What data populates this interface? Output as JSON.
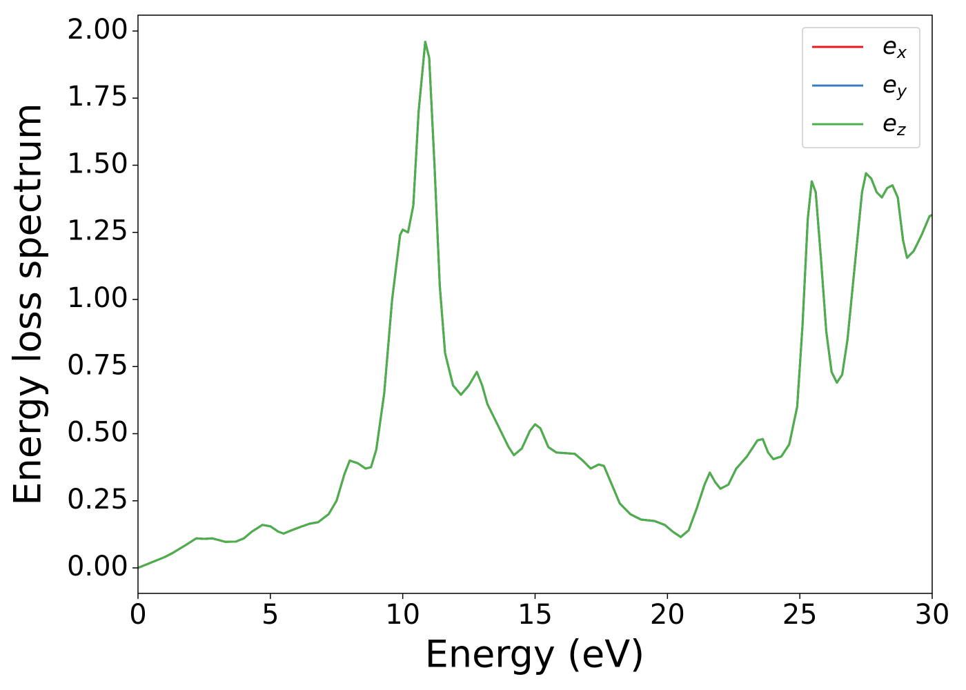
{
  "chart_data": {
    "type": "line",
    "x_label": "Energy (eV)",
    "y_label": "Energy loss spectrum",
    "xlim": [
      0,
      30
    ],
    "ylim": [
      -0.095,
      2.059
    ],
    "xticks": [
      0,
      5,
      10,
      15,
      20,
      25,
      30
    ],
    "yticks": [
      {
        "value": 0,
        "label": "0.00"
      },
      {
        "value": 0.25,
        "label": "0.25"
      },
      {
        "value": 0.5,
        "label": "0.50"
      },
      {
        "value": 0.75,
        "label": "0.75"
      },
      {
        "value": 1,
        "label": "1.00"
      },
      {
        "value": 1.25,
        "label": "1.25"
      },
      {
        "value": 1.5,
        "label": "1.50"
      },
      {
        "value": 1.75,
        "label": "1.75"
      },
      {
        "value": 2,
        "label": "2.00"
      }
    ],
    "legend": "upper right",
    "x": [
      0,
      0.5,
      1.0,
      1.3,
      1.8,
      2.2,
      2.5,
      2.8,
      3.0,
      3.3,
      3.7,
      4.0,
      4.3,
      4.7,
      5.0,
      5.3,
      5.5,
      5.8,
      6.2,
      6.5,
      6.8,
      7.2,
      7.5,
      7.8,
      8.0,
      8.3,
      8.6,
      8.8,
      9.0,
      9.3,
      9.6,
      9.9,
      10.0,
      10.2,
      10.4,
      10.6,
      10.85,
      11.0,
      11.2,
      11.4,
      11.6,
      11.9,
      12.2,
      12.5,
      12.8,
      13.0,
      13.2,
      13.6,
      14.0,
      14.2,
      14.5,
      14.8,
      15.0,
      15.2,
      15.5,
      15.8,
      16.5,
      16.8,
      17.1,
      17.4,
      17.6,
      17.9,
      18.2,
      18.6,
      19.0,
      19.5,
      19.9,
      20.2,
      20.5,
      20.8,
      21.1,
      21.4,
      21.6,
      21.8,
      22.0,
      22.3,
      22.6,
      23.0,
      23.4,
      23.6,
      23.8,
      24.0,
      24.3,
      24.6,
      24.9,
      25.1,
      25.3,
      25.45,
      25.6,
      25.8,
      26.0,
      26.2,
      26.4,
      26.6,
      26.8,
      27.1,
      27.35,
      27.5,
      27.7,
      27.9,
      28.1,
      28.3,
      28.5,
      28.7,
      28.9,
      29.05,
      29.3,
      29.6,
      29.9,
      30.0
    ],
    "series": [
      {
        "name": "ex",
        "color": "#e41a1c",
        "values": [
          0,
          0.02,
          0.04,
          0.055,
          0.085,
          0.11,
          0.108,
          0.11,
          0.105,
          0.097,
          0.098,
          0.11,
          0.135,
          0.16,
          0.155,
          0.135,
          0.128,
          0.14,
          0.155,
          0.165,
          0.17,
          0.2,
          0.25,
          0.35,
          0.4,
          0.39,
          0.37,
          0.375,
          0.44,
          0.65,
          1.0,
          1.24,
          1.26,
          1.25,
          1.35,
          1.7,
          1.96,
          1.9,
          1.5,
          1.05,
          0.8,
          0.68,
          0.645,
          0.68,
          0.73,
          0.68,
          0.61,
          0.53,
          0.45,
          0.42,
          0.445,
          0.51,
          0.535,
          0.52,
          0.45,
          0.43,
          0.425,
          0.4,
          0.37,
          0.385,
          0.38,
          0.31,
          0.24,
          0.2,
          0.18,
          0.175,
          0.16,
          0.135,
          0.115,
          0.14,
          0.22,
          0.31,
          0.355,
          0.32,
          0.295,
          0.31,
          0.37,
          0.415,
          0.475,
          0.48,
          0.43,
          0.405,
          0.415,
          0.46,
          0.6,
          0.9,
          1.3,
          1.44,
          1.4,
          1.15,
          0.88,
          0.73,
          0.69,
          0.72,
          0.85,
          1.15,
          1.4,
          1.47,
          1.45,
          1.4,
          1.38,
          1.415,
          1.425,
          1.38,
          1.22,
          1.155,
          1.18,
          1.24,
          1.31,
          1.315
        ]
      },
      {
        "name": "ey",
        "color": "#377eb8",
        "values": [
          0,
          0.02,
          0.04,
          0.055,
          0.085,
          0.11,
          0.108,
          0.11,
          0.105,
          0.097,
          0.098,
          0.11,
          0.135,
          0.16,
          0.155,
          0.135,
          0.128,
          0.14,
          0.155,
          0.165,
          0.17,
          0.2,
          0.25,
          0.35,
          0.4,
          0.39,
          0.37,
          0.375,
          0.44,
          0.65,
          1.0,
          1.24,
          1.26,
          1.25,
          1.35,
          1.7,
          1.96,
          1.9,
          1.5,
          1.05,
          0.8,
          0.68,
          0.645,
          0.68,
          0.73,
          0.68,
          0.61,
          0.53,
          0.45,
          0.42,
          0.445,
          0.51,
          0.535,
          0.52,
          0.45,
          0.43,
          0.425,
          0.4,
          0.37,
          0.385,
          0.38,
          0.31,
          0.24,
          0.2,
          0.18,
          0.175,
          0.16,
          0.135,
          0.115,
          0.14,
          0.22,
          0.31,
          0.355,
          0.32,
          0.295,
          0.31,
          0.37,
          0.415,
          0.475,
          0.48,
          0.43,
          0.405,
          0.415,
          0.46,
          0.6,
          0.9,
          1.3,
          1.44,
          1.4,
          1.15,
          0.88,
          0.73,
          0.69,
          0.72,
          0.85,
          1.15,
          1.4,
          1.47,
          1.45,
          1.4,
          1.38,
          1.415,
          1.425,
          1.38,
          1.22,
          1.155,
          1.18,
          1.24,
          1.31,
          1.315
        ]
      },
      {
        "name": "ez",
        "color": "#4daf4a",
        "values": [
          0,
          0.02,
          0.04,
          0.055,
          0.085,
          0.11,
          0.108,
          0.11,
          0.105,
          0.097,
          0.098,
          0.11,
          0.135,
          0.16,
          0.155,
          0.135,
          0.128,
          0.14,
          0.155,
          0.165,
          0.17,
          0.2,
          0.25,
          0.35,
          0.4,
          0.39,
          0.37,
          0.375,
          0.44,
          0.65,
          1.0,
          1.24,
          1.26,
          1.25,
          1.35,
          1.7,
          1.96,
          1.9,
          1.5,
          1.05,
          0.8,
          0.68,
          0.645,
          0.68,
          0.73,
          0.68,
          0.61,
          0.53,
          0.45,
          0.42,
          0.445,
          0.51,
          0.535,
          0.52,
          0.45,
          0.43,
          0.425,
          0.4,
          0.37,
          0.385,
          0.38,
          0.31,
          0.24,
          0.2,
          0.18,
          0.175,
          0.16,
          0.135,
          0.115,
          0.14,
          0.22,
          0.31,
          0.355,
          0.32,
          0.295,
          0.31,
          0.37,
          0.415,
          0.475,
          0.48,
          0.43,
          0.405,
          0.415,
          0.46,
          0.6,
          0.9,
          1.3,
          1.44,
          1.4,
          1.15,
          0.88,
          0.73,
          0.69,
          0.72,
          0.85,
          1.15,
          1.4,
          1.47,
          1.45,
          1.4,
          1.38,
          1.415,
          1.425,
          1.38,
          1.22,
          1.155,
          1.18,
          1.24,
          1.31,
          1.315
        ]
      }
    ]
  }
}
